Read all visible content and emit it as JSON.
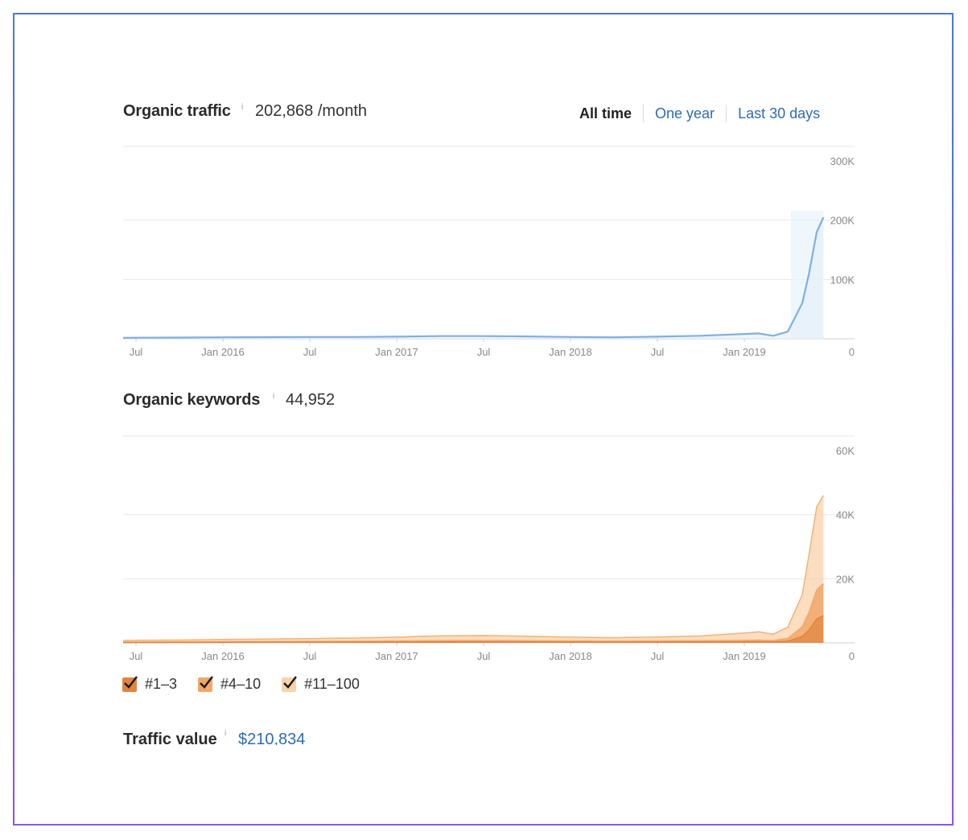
{
  "organic_traffic": {
    "title": "Organic traffic",
    "info": "i",
    "value": "202,868 /month",
    "tabs": [
      {
        "label": "All time",
        "active": true
      },
      {
        "label": "One year",
        "active": false
      },
      {
        "label": "Last 30 days",
        "active": false
      }
    ]
  },
  "organic_keywords": {
    "title": "Organic keywords",
    "info": "i",
    "value": "44,952"
  },
  "legend": {
    "items": [
      {
        "label": "#1–3",
        "checked": true,
        "color": "#e3843e"
      },
      {
        "label": "#4–10",
        "checked": true,
        "color": "#f1a768"
      },
      {
        "label": "#11–100",
        "checked": true,
        "color": "#f9d2a9"
      }
    ]
  },
  "traffic_value": {
    "title": "Traffic value",
    "info": "i",
    "value": "$210,834"
  },
  "chart_data": [
    {
      "type": "area",
      "title": "Organic traffic",
      "x_tick_labels": [
        "Jul",
        "Jan 2016",
        "Jul",
        "Jan 2017",
        "Jul",
        "Jan 2018",
        "Jul",
        "Jan 2019"
      ],
      "y_tick_labels": [
        "300K",
        "200K",
        "100K",
        "0"
      ],
      "ylim": [
        0,
        300000
      ],
      "y_axis_side": "right",
      "grid": true,
      "series": [
        {
          "color": "#7fb0e0",
          "x": [
            "2015-05",
            "2015-07",
            "2015-10",
            "2016-01",
            "2016-04",
            "2016-07",
            "2016-10",
            "2017-01",
            "2017-04",
            "2017-07",
            "2017-10",
            "2018-01",
            "2018-04",
            "2018-07",
            "2018-10",
            "2019-01",
            "2019-02",
            "2019-03",
            "2019-04",
            "2019-05",
            "2019-05-15",
            "2019-06",
            "2019-06-15"
          ],
          "values": [
            1500,
            1800,
            2000,
            2500,
            2700,
            3000,
            3000,
            3500,
            4500,
            4500,
            4000,
            3000,
            2500,
            3500,
            5000,
            8000,
            9000,
            5000,
            12000,
            60000,
            110000,
            180000,
            205000
          ]
        }
      ]
    },
    {
      "type": "area",
      "title": "Organic keywords",
      "x_tick_labels": [
        "Jul",
        "Jan 2016",
        "Jul",
        "Jan 2017",
        "Jul",
        "Jan 2018",
        "Jul",
        "Jan 2019"
      ],
      "y_tick_labels": [
        "60K",
        "40K",
        "20K",
        "0"
      ],
      "ylim": [
        0,
        60000
      ],
      "y_axis_side": "right",
      "grid": true,
      "stacked": true,
      "x": [
        "2015-05",
        "2015-07",
        "2015-10",
        "2016-01",
        "2016-04",
        "2016-07",
        "2016-10",
        "2017-01",
        "2017-04",
        "2017-07",
        "2017-10",
        "2018-01",
        "2018-04",
        "2018-07",
        "2018-10",
        "2019-01",
        "2019-02",
        "2019-03",
        "2019-04",
        "2019-05",
        "2019-05-15",
        "2019-06",
        "2019-06-15"
      ],
      "series": [
        {
          "name": "#1–3",
          "color": "#e3843e",
          "values": [
            100,
            100,
            120,
            150,
            180,
            200,
            220,
            250,
            300,
            300,
            280,
            250,
            230,
            250,
            280,
            320,
            350,
            300,
            500,
            2000,
            4000,
            7500,
            8500
          ]
        },
        {
          "name": "#4–10",
          "color": "#f1a768",
          "values": [
            150,
            150,
            170,
            200,
            230,
            260,
            290,
            330,
            400,
            420,
            380,
            330,
            300,
            330,
            380,
            460,
            500,
            420,
            900,
            3000,
            5500,
            9000,
            10000
          ]
        },
        {
          "name": "#11–100",
          "color": "#f9d2a9",
          "values": [
            500,
            550,
            600,
            700,
            800,
            900,
            1000,
            1200,
            1500,
            1600,
            1400,
            1200,
            1100,
            1250,
            1500,
            2300,
            2600,
            2000,
            3500,
            10000,
            18000,
            26000,
            27500
          ]
        }
      ]
    }
  ]
}
